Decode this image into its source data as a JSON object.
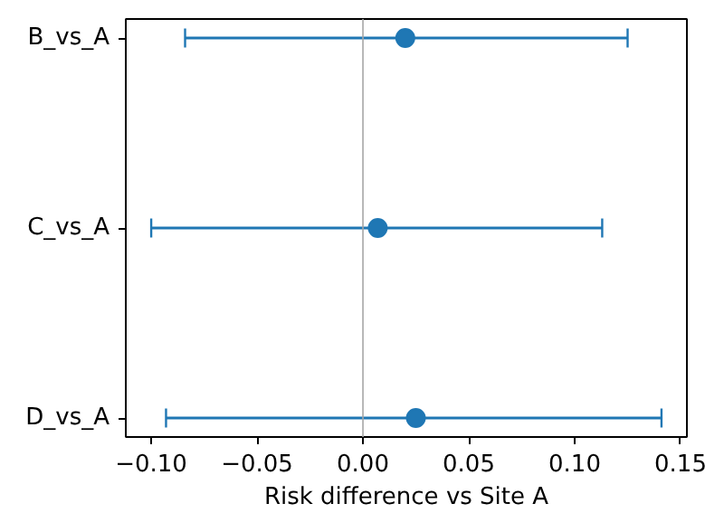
{
  "chart_data": {
    "type": "scatter",
    "orientation": "horizontal",
    "xlabel": "Risk difference vs Site A",
    "categories": [
      "B_vs_A",
      "C_vs_A",
      "D_vs_A"
    ],
    "series": [
      {
        "color": "#1f77b4",
        "values": [
          0.02,
          0.007,
          0.025
        ],
        "errors": [
          [
            -0.084,
            0.125
          ],
          [
            -0.1,
            0.113
          ],
          [
            -0.093,
            0.141
          ]
        ]
      }
    ],
    "xlim": [
      -0.112,
      0.153
    ],
    "xticks": [
      {
        "value": -0.1,
        "label": "−0.10"
      },
      {
        "value": -0.05,
        "label": "−0.05"
      },
      {
        "value": 0,
        "label": "0.00"
      },
      {
        "value": 0.05,
        "label": "0.05"
      },
      {
        "value": 0.1,
        "label": "0.10"
      },
      {
        "value": 0.15,
        "label": "0.15"
      }
    ],
    "ref_lines": [
      {
        "axis": "x",
        "value": 0,
        "color": "#a6a6a6"
      }
    ],
    "marker": "circle",
    "grid": false
  }
}
